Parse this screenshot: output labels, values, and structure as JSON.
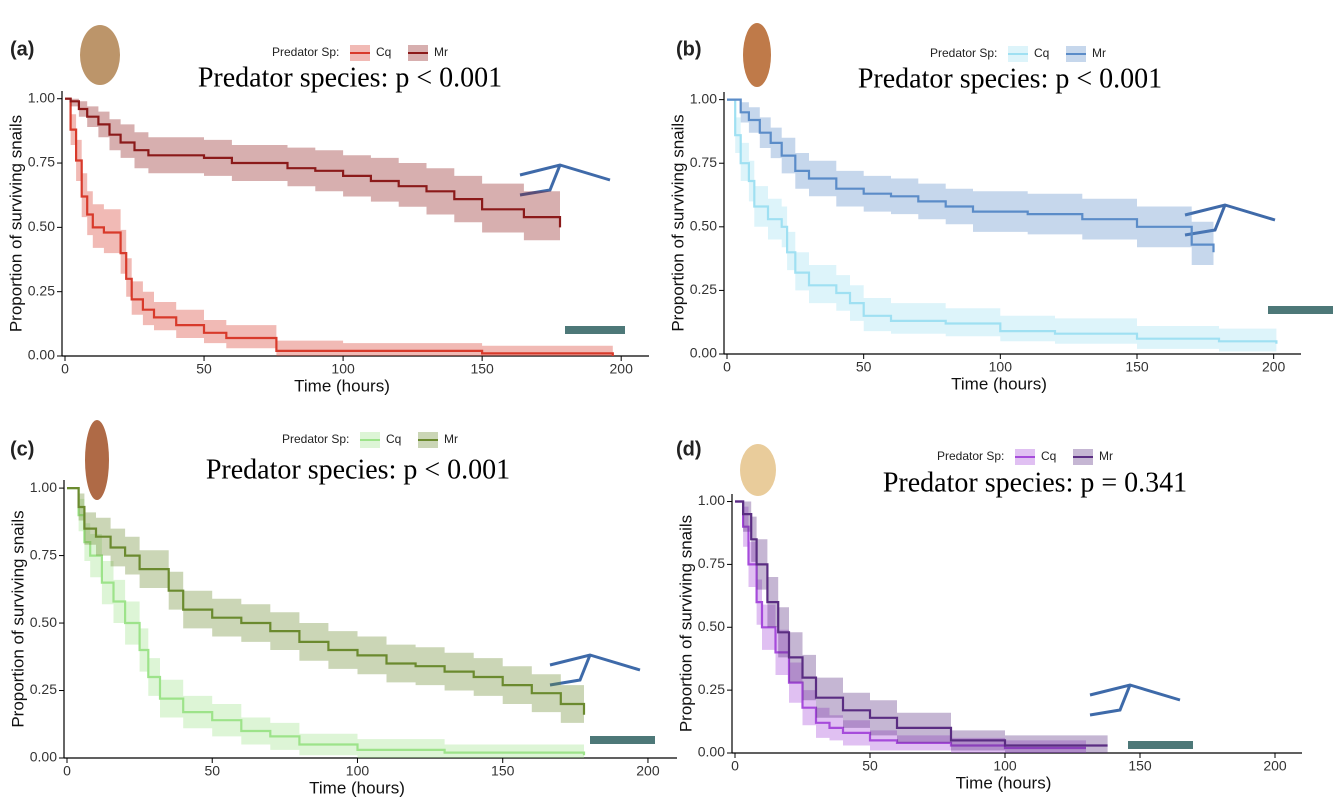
{
  "chart_data": [
    {
      "type": "step",
      "panel_label": "(a)",
      "legend_title": "Predator Sp:",
      "title": "Predator species: p < 0.001",
      "xlabel": "Time (hours)",
      "ylabel": "Proportion of surviving snails",
      "xlim": [
        0,
        210
      ],
      "ylim": [
        0,
        1.03
      ],
      "xticks": [
        0,
        50,
        100,
        150,
        200
      ],
      "yticks": [
        {
          "value": 0,
          "label": "0.00"
        },
        {
          "value": 0.25,
          "label": "0.25"
        },
        {
          "value": 0.5,
          "label": "0.50"
        },
        {
          "value": 0.75,
          "label": "0.75"
        },
        {
          "value": 1,
          "label": "1.00"
        }
      ],
      "series": [
        {
          "name": "Cq",
          "color": "#d83a2b",
          "x": [
            0,
            2,
            4,
            6,
            8,
            10,
            14,
            20,
            22,
            24,
            28,
            32,
            40,
            50,
            58,
            76,
            100,
            150,
            197
          ],
          "values": [
            1,
            0.88,
            0.76,
            0.62,
            0.55,
            0.5,
            0.48,
            0.4,
            0.3,
            0.22,
            0.18,
            0.15,
            0.12,
            0.09,
            0.07,
            0.02,
            0.02,
            0.01,
            0
          ],
          "ci_lower": [
            1,
            0.82,
            0.68,
            0.54,
            0.47,
            0.42,
            0.4,
            0.32,
            0.23,
            0.16,
            0.12,
            0.1,
            0.07,
            0.05,
            0.03,
            0,
            0,
            0,
            0
          ],
          "ci_upper": [
            1,
            0.94,
            0.84,
            0.71,
            0.64,
            0.59,
            0.57,
            0.49,
            0.38,
            0.29,
            0.25,
            0.21,
            0.18,
            0.14,
            0.12,
            0.06,
            0.05,
            0.04,
            0.02
          ]
        },
        {
          "name": "Mr",
          "color": "#8b1a1a",
          "x": [
            0,
            2,
            5,
            8,
            12,
            16,
            20,
            25,
            30,
            50,
            60,
            80,
            90,
            100,
            110,
            120,
            130,
            140,
            150,
            165,
            178
          ],
          "values": [
            1,
            0.99,
            0.96,
            0.93,
            0.9,
            0.86,
            0.83,
            0.8,
            0.78,
            0.77,
            0.75,
            0.73,
            0.72,
            0.7,
            0.68,
            0.66,
            0.64,
            0.61,
            0.57,
            0.54,
            0.5
          ],
          "ci_lower": [
            1,
            0.97,
            0.93,
            0.89,
            0.85,
            0.8,
            0.77,
            0.73,
            0.71,
            0.7,
            0.68,
            0.66,
            0.64,
            0.62,
            0.6,
            0.58,
            0.55,
            0.52,
            0.48,
            0.45,
            0.4
          ],
          "ci_upper": [
            1,
            1,
            0.99,
            0.97,
            0.95,
            0.92,
            0.9,
            0.87,
            0.85,
            0.84,
            0.82,
            0.81,
            0.8,
            0.78,
            0.77,
            0.75,
            0.73,
            0.7,
            0.67,
            0.64,
            0.61
          ]
        }
      ]
    },
    {
      "type": "step",
      "panel_label": "(b)",
      "legend_title": "Predator Sp:",
      "title": "Predator species: p < 0.001",
      "xlabel": "Time (hours)",
      "ylabel": "Proportion of surviving snails",
      "xlim": [
        0,
        210
      ],
      "ylim": [
        0,
        1.03
      ],
      "xticks": [
        0,
        50,
        100,
        150,
        200
      ],
      "yticks": [
        {
          "value": 0,
          "label": "0.00"
        },
        {
          "value": 0.25,
          "label": "0.25"
        },
        {
          "value": 0.5,
          "label": "0.50"
        },
        {
          "value": 0.75,
          "label": "0.75"
        },
        {
          "value": 1,
          "label": "1.00"
        }
      ],
      "series": [
        {
          "name": "Cq",
          "color": "#9fe0f2",
          "x": [
            0,
            3,
            5,
            8,
            10,
            15,
            20,
            22,
            25,
            30,
            40,
            45,
            50,
            60,
            80,
            100,
            120,
            150,
            180,
            201
          ],
          "values": [
            1,
            0.86,
            0.75,
            0.68,
            0.58,
            0.53,
            0.5,
            0.4,
            0.32,
            0.27,
            0.24,
            0.2,
            0.15,
            0.13,
            0.12,
            0.09,
            0.08,
            0.06,
            0.05,
            0.04
          ],
          "ci_lower": [
            1,
            0.79,
            0.68,
            0.6,
            0.5,
            0.45,
            0.42,
            0.33,
            0.25,
            0.2,
            0.17,
            0.13,
            0.09,
            0.08,
            0.07,
            0.05,
            0.04,
            0.02,
            0.01,
            0.01
          ],
          "ci_upper": [
            1,
            0.93,
            0.83,
            0.76,
            0.66,
            0.61,
            0.58,
            0.48,
            0.4,
            0.35,
            0.31,
            0.27,
            0.22,
            0.2,
            0.18,
            0.15,
            0.14,
            0.11,
            0.1,
            0.09
          ]
        },
        {
          "name": "Mr",
          "color": "#5b8cc8",
          "x": [
            0,
            5,
            8,
            12,
            16,
            20,
            25,
            30,
            40,
            50,
            60,
            70,
            80,
            90,
            110,
            130,
            150,
            170,
            178
          ],
          "values": [
            1,
            0.95,
            0.92,
            0.87,
            0.83,
            0.78,
            0.72,
            0.69,
            0.65,
            0.63,
            0.62,
            0.6,
            0.58,
            0.56,
            0.55,
            0.53,
            0.5,
            0.43,
            0.4
          ],
          "ci_lower": [
            1,
            0.91,
            0.87,
            0.81,
            0.77,
            0.71,
            0.65,
            0.62,
            0.58,
            0.56,
            0.55,
            0.53,
            0.51,
            0.48,
            0.47,
            0.45,
            0.42,
            0.35,
            0.32
          ],
          "ci_upper": [
            1,
            0.99,
            0.97,
            0.93,
            0.89,
            0.85,
            0.79,
            0.76,
            0.72,
            0.7,
            0.69,
            0.67,
            0.65,
            0.64,
            0.63,
            0.61,
            0.58,
            0.52,
            0.5
          ]
        }
      ]
    },
    {
      "type": "step",
      "panel_label": "(c)",
      "legend_title": "Predator Sp:",
      "title": "Predator species: p < 0.001",
      "xlabel": "Time (hours)",
      "ylabel": "Proportion of surviving snails",
      "xlim": [
        0,
        210
      ],
      "ylim": [
        0,
        1.03
      ],
      "xticks": [
        0,
        50,
        100,
        150,
        200
      ],
      "yticks": [
        {
          "value": 0,
          "label": "0.00"
        },
        {
          "value": 0.25,
          "label": "0.25"
        },
        {
          "value": 0.5,
          "label": "0.50"
        },
        {
          "value": 0.75,
          "label": "0.75"
        },
        {
          "value": 1,
          "label": "1.00"
        }
      ],
      "series": [
        {
          "name": "Cq",
          "color": "#9de38a",
          "x": [
            0,
            4,
            6,
            8,
            12,
            16,
            20,
            25,
            28,
            32,
            40,
            50,
            60,
            70,
            80,
            100,
            130,
            178
          ],
          "values": [
            1,
            0.9,
            0.8,
            0.75,
            0.65,
            0.58,
            0.5,
            0.4,
            0.3,
            0.22,
            0.17,
            0.14,
            0.1,
            0.08,
            0.05,
            0.03,
            0.02,
            0.01
          ],
          "ci_lower": [
            1,
            0.84,
            0.73,
            0.67,
            0.57,
            0.5,
            0.42,
            0.32,
            0.23,
            0.15,
            0.11,
            0.08,
            0.05,
            0.03,
            0.01,
            0,
            0,
            0
          ],
          "ci_upper": [
            1,
            0.96,
            0.87,
            0.83,
            0.73,
            0.66,
            0.58,
            0.48,
            0.37,
            0.29,
            0.23,
            0.2,
            0.15,
            0.13,
            0.09,
            0.07,
            0.05,
            0.03
          ]
        },
        {
          "name": "Mr",
          "color": "#6b8a2f",
          "x": [
            0,
            4,
            6,
            10,
            15,
            20,
            25,
            35,
            40,
            50,
            60,
            70,
            80,
            90,
            100,
            110,
            120,
            130,
            140,
            150,
            160,
            170,
            178
          ],
          "values": [
            1,
            0.93,
            0.85,
            0.82,
            0.78,
            0.75,
            0.7,
            0.62,
            0.55,
            0.52,
            0.5,
            0.47,
            0.43,
            0.4,
            0.38,
            0.35,
            0.34,
            0.32,
            0.3,
            0.27,
            0.24,
            0.2,
            0.16
          ],
          "ci_lower": [
            1,
            0.88,
            0.79,
            0.75,
            0.71,
            0.68,
            0.63,
            0.55,
            0.48,
            0.45,
            0.43,
            0.4,
            0.36,
            0.33,
            0.31,
            0.28,
            0.27,
            0.25,
            0.23,
            0.2,
            0.17,
            0.13,
            0.09
          ],
          "ci_upper": [
            1,
            0.98,
            0.91,
            0.89,
            0.85,
            0.82,
            0.77,
            0.69,
            0.62,
            0.59,
            0.57,
            0.54,
            0.5,
            0.47,
            0.45,
            0.42,
            0.41,
            0.39,
            0.37,
            0.34,
            0.31,
            0.27,
            0.23
          ]
        }
      ]
    },
    {
      "type": "step",
      "panel_label": "(d)",
      "legend_title": "Predator Sp:",
      "title": "Predator species: p = 0.341",
      "xlabel": "Time (hours)",
      "ylabel": "Proportion of surviving snails",
      "xlim": [
        0,
        210
      ],
      "ylim": [
        0,
        1.03
      ],
      "xticks": [
        0,
        50,
        100,
        150,
        200
      ],
      "yticks": [
        {
          "value": 0,
          "label": "0.00"
        },
        {
          "value": 0.25,
          "label": "0.25"
        },
        {
          "value": 0.5,
          "label": "0.50"
        },
        {
          "value": 0.75,
          "label": "0.75"
        },
        {
          "value": 1,
          "label": "1.00"
        }
      ],
      "series": [
        {
          "name": "Cq",
          "color": "#a64bdb",
          "x": [
            0,
            3,
            5,
            8,
            10,
            15,
            20,
            25,
            30,
            35,
            40,
            50,
            60,
            80,
            100,
            130
          ],
          "values": [
            1,
            0.9,
            0.75,
            0.6,
            0.5,
            0.4,
            0.28,
            0.18,
            0.12,
            0.1,
            0.08,
            0.05,
            0.04,
            0.03,
            0.02,
            0.02
          ],
          "ci_lower": [
            1,
            0.82,
            0.66,
            0.51,
            0.41,
            0.31,
            0.2,
            0.11,
            0.06,
            0.05,
            0.03,
            0.01,
            0.01,
            0,
            0,
            0
          ],
          "ci_upper": [
            1,
            0.98,
            0.84,
            0.69,
            0.59,
            0.49,
            0.36,
            0.25,
            0.18,
            0.15,
            0.13,
            0.09,
            0.07,
            0.06,
            0.05,
            0.05
          ]
        },
        {
          "name": "Mr",
          "color": "#5a2d82",
          "x": [
            0,
            3,
            6,
            8,
            12,
            16,
            20,
            25,
            30,
            40,
            50,
            60,
            80,
            100,
            120,
            138
          ],
          "values": [
            1,
            0.95,
            0.85,
            0.75,
            0.6,
            0.48,
            0.38,
            0.3,
            0.22,
            0.17,
            0.14,
            0.1,
            0.05,
            0.03,
            0.03,
            0.03
          ],
          "ci_lower": [
            1,
            0.88,
            0.76,
            0.65,
            0.5,
            0.38,
            0.28,
            0.21,
            0.14,
            0.1,
            0.07,
            0.04,
            0.01,
            0,
            0,
            0
          ],
          "ci_upper": [
            1,
            1,
            0.94,
            0.85,
            0.7,
            0.58,
            0.48,
            0.39,
            0.3,
            0.24,
            0.21,
            0.16,
            0.09,
            0.07,
            0.07,
            0.07
          ]
        }
      ]
    }
  ]
}
